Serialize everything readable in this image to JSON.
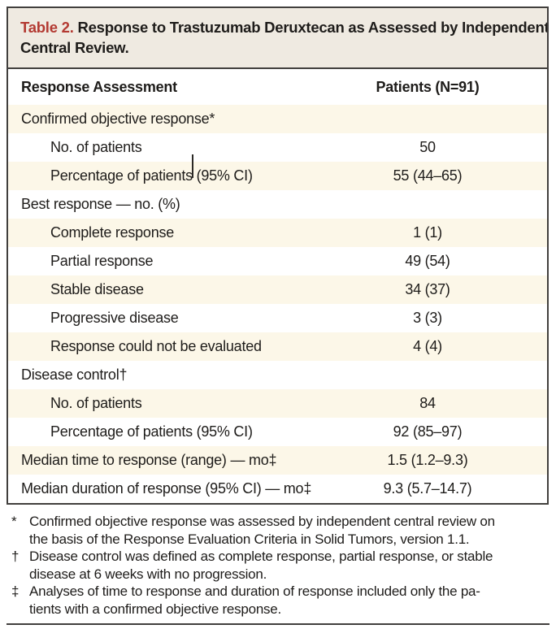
{
  "table": {
    "title_label": "Table 2.",
    "title_line1": "Response to Trastuzumab Deruxtecan as Assessed by Independent",
    "title_line2": "Central Review.",
    "columns": {
      "assessment": "Response Assessment",
      "patients": "Patients (N=91)"
    },
    "rows": [
      {
        "label": "Confirmed objective response*",
        "value": ""
      },
      {
        "label": "No. of patients",
        "value": "50"
      },
      {
        "label": "Percentage of patients (95% CI)",
        "value": "55 (44–65)"
      },
      {
        "label": "Best response — no. (%)",
        "value": ""
      },
      {
        "label": "Complete response",
        "value": "1 (1)"
      },
      {
        "label": "Partial response",
        "value": "49 (54)"
      },
      {
        "label": "Stable disease",
        "value": "34 (37)"
      },
      {
        "label": "Progressive disease",
        "value": "3 (3)"
      },
      {
        "label": "Response could not be evaluated",
        "value": "4 (4)"
      },
      {
        "label": "Disease control†",
        "value": ""
      },
      {
        "label": "No. of patients",
        "value": "84"
      },
      {
        "label": "Percentage of patients (95% CI)",
        "value": "92 (85–97)"
      },
      {
        "label": "Median time to response (range) — mo‡",
        "value": "1.5 (1.2–9.3)"
      },
      {
        "label": "Median duration of response (95% CI) — mo‡",
        "value": "9.3 (5.7–14.7)"
      }
    ]
  },
  "footnotes": [
    {
      "marker": "*",
      "lines": [
        "Confirmed objective response was assessed by independent central review on",
        "the basis of the Response Evaluation Criteria in Solid Tumors, version 1.1."
      ]
    },
    {
      "marker": "†",
      "lines": [
        "Disease control was defined as complete response, partial response, or stable",
        "disease at 6 weeks with no progression."
      ]
    },
    {
      "marker": "‡",
      "lines": [
        "Analyses of time to response and duration of response included only the pa-",
        "tients with a confirmed objective response."
      ]
    }
  ],
  "colors": {
    "title_red": "#b33a32",
    "band_bg": "#efeae1",
    "row_shade_bg": "#fcf7e8",
    "border_dark": "#413f3d",
    "text": "#1e1c1a"
  }
}
